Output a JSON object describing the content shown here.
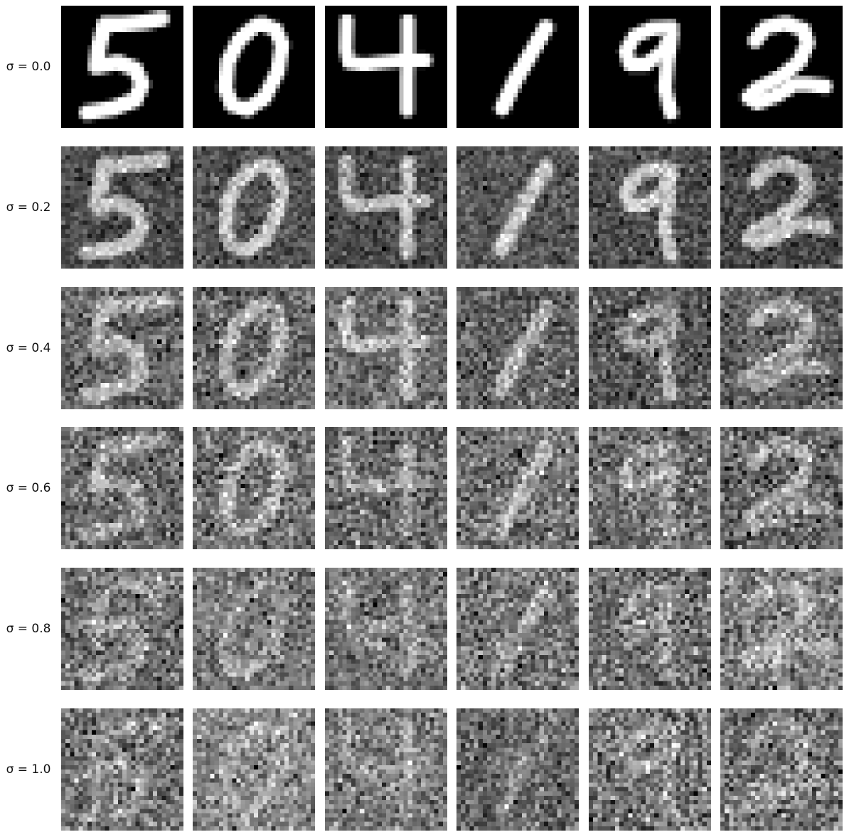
{
  "figure": {
    "sigma_symbol": "σ",
    "rows": [
      {
        "label": "σ = 0.0",
        "sigma": 0.0
      },
      {
        "label": "σ = 0.2",
        "sigma": 0.2
      },
      {
        "label": "σ = 0.4",
        "sigma": 0.4
      },
      {
        "label": "σ = 0.6",
        "sigma": 0.6
      },
      {
        "label": "σ = 0.8",
        "sigma": 0.8
      },
      {
        "label": "σ = 1.0",
        "sigma": 1.0
      }
    ],
    "digits": [
      "5",
      "0",
      "4",
      "1",
      "9",
      "2"
    ],
    "grid": "6 rows × 6 columns of noisy 28×28 grayscale digit images",
    "colormap": {
      "background": "#000000",
      "foreground": "#ffffff"
    }
  }
}
